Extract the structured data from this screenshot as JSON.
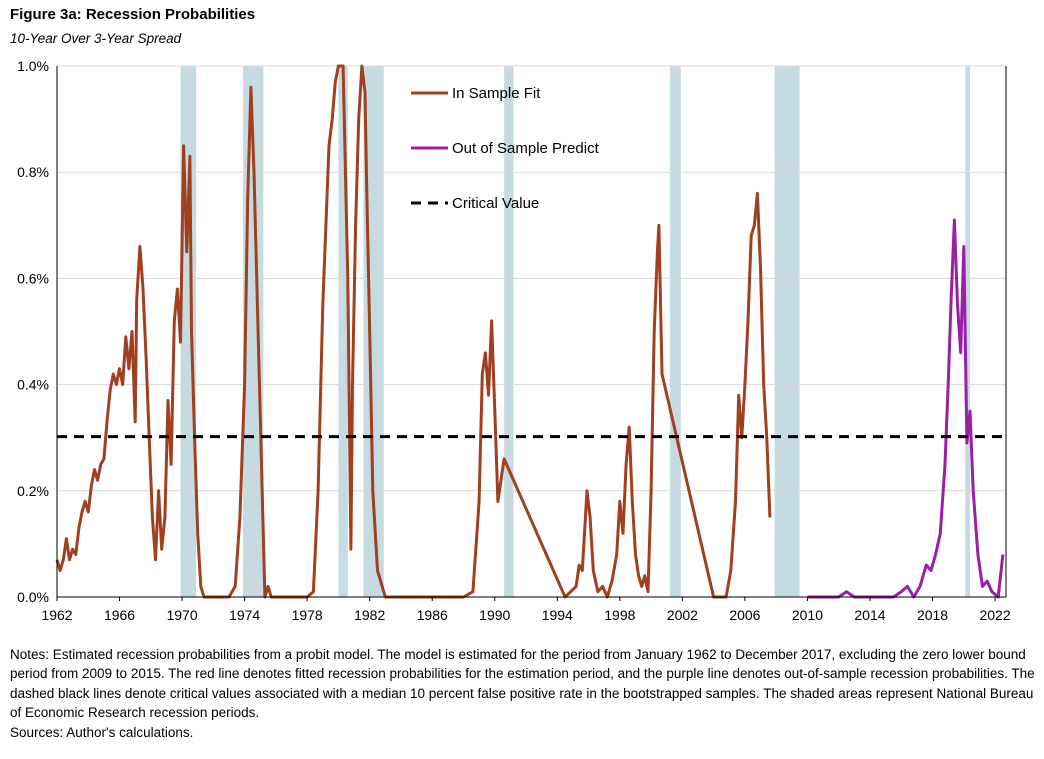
{
  "title": "Figure 3a: Recession Probabilities",
  "subtitle": "10-Year Over 3-Year Spread",
  "notes": "Notes: Estimated recession probabilities from a probit model. The model is estimated for the period from January 1962 to December 2017,  excluding the zero lower bound period from 2009 to 2015.  The red line denotes fitted recession probabilities for the estimation period, and the purple line denotes out-of-sample recession probabilities. The dashed black lines denote critical values associated with a median 10 percent false positive rate in the bootstrapped samples. The shaded areas represent National Bureau of Economic Research recession periods.",
  "sources": "Sources: Author's calculations.",
  "colors": {
    "in_sample": "#a0401e",
    "out_of_sample": "#9b1fa6",
    "critical": "#000000",
    "recession_shade": "#c5dbe1",
    "grid": "#d9d9d9"
  },
  "chart_data": {
    "type": "line",
    "xlim": [
      1962,
      2022.7
    ],
    "ylim": [
      0,
      1.0
    ],
    "grid": "horizontal",
    "legend_position": "top-center",
    "x_ticks": [
      "1962",
      "1966",
      "1970",
      "1974",
      "1978",
      "1982",
      "1986",
      "1990",
      "1994",
      "1998",
      "2002",
      "2006",
      "2010",
      "2014",
      "2018",
      "2022"
    ],
    "y_ticks": [
      "0.0%",
      "0.2%",
      "0.4%",
      "0.6%",
      "0.8%",
      "1.0%"
    ],
    "recessions": [
      [
        1969.9,
        1970.9
      ],
      [
        1973.9,
        1975.2
      ],
      [
        1980.0,
        1980.6
      ],
      [
        1981.6,
        1982.9
      ],
      [
        1990.6,
        1991.2
      ],
      [
        2001.2,
        2001.9
      ],
      [
        2007.9,
        2009.5
      ],
      [
        2020.1,
        2020.4
      ]
    ],
    "critical_value": 0.302,
    "series": [
      {
        "name": "In Sample Fit",
        "style": "solid",
        "points": [
          [
            1962.0,
            0.07
          ],
          [
            1962.2,
            0.05
          ],
          [
            1962.4,
            0.07
          ],
          [
            1962.6,
            0.11
          ],
          [
            1962.8,
            0.07
          ],
          [
            1963.0,
            0.09
          ],
          [
            1963.2,
            0.08
          ],
          [
            1963.4,
            0.13
          ],
          [
            1963.6,
            0.16
          ],
          [
            1963.8,
            0.18
          ],
          [
            1964.0,
            0.16
          ],
          [
            1964.2,
            0.21
          ],
          [
            1964.4,
            0.24
          ],
          [
            1964.6,
            0.22
          ],
          [
            1964.8,
            0.25
          ],
          [
            1965.0,
            0.26
          ],
          [
            1965.2,
            0.33
          ],
          [
            1965.4,
            0.39
          ],
          [
            1965.6,
            0.42
          ],
          [
            1965.8,
            0.4
          ],
          [
            1966.0,
            0.43
          ],
          [
            1966.2,
            0.4
          ],
          [
            1966.4,
            0.49
          ],
          [
            1966.6,
            0.43
          ],
          [
            1966.8,
            0.5
          ],
          [
            1967.0,
            0.33
          ],
          [
            1967.1,
            0.56
          ],
          [
            1967.3,
            0.66
          ],
          [
            1967.5,
            0.58
          ],
          [
            1967.7,
            0.45
          ],
          [
            1967.9,
            0.3
          ],
          [
            1968.1,
            0.15
          ],
          [
            1968.3,
            0.07
          ],
          [
            1968.5,
            0.2
          ],
          [
            1968.7,
            0.09
          ],
          [
            1968.9,
            0.15
          ],
          [
            1969.1,
            0.37
          ],
          [
            1969.3,
            0.25
          ],
          [
            1969.5,
            0.52
          ],
          [
            1969.7,
            0.58
          ],
          [
            1969.9,
            0.48
          ],
          [
            1970.1,
            0.85
          ],
          [
            1970.3,
            0.65
          ],
          [
            1970.5,
            0.83
          ],
          [
            1970.6,
            0.5
          ],
          [
            1970.8,
            0.3
          ],
          [
            1971.0,
            0.12
          ],
          [
            1971.2,
            0.02
          ],
          [
            1971.4,
            0.0
          ],
          [
            1972.0,
            0.0
          ],
          [
            1973.0,
            0.0
          ],
          [
            1973.4,
            0.02
          ],
          [
            1973.7,
            0.15
          ],
          [
            1974.0,
            0.4
          ],
          [
            1974.2,
            0.75
          ],
          [
            1974.4,
            0.96
          ],
          [
            1974.6,
            0.8
          ],
          [
            1975.3,
            0.0
          ],
          [
            1975.5,
            0.02
          ],
          [
            1975.7,
            0.0
          ],
          [
            1977.0,
            0.0
          ],
          [
            1978.0,
            0.0
          ],
          [
            1978.4,
            0.01
          ],
          [
            1978.7,
            0.2
          ],
          [
            1979.0,
            0.55
          ],
          [
            1979.2,
            0.7
          ],
          [
            1979.4,
            0.85
          ],
          [
            1979.6,
            0.9
          ],
          [
            1979.8,
            0.97
          ],
          [
            1980.0,
            1.0
          ],
          [
            1980.3,
            1.0
          ],
          [
            1980.6,
            0.6
          ],
          [
            1980.8,
            0.09
          ],
          [
            1980.9,
            0.4
          ],
          [
            1981.1,
            0.7
          ],
          [
            1981.3,
            0.9
          ],
          [
            1981.5,
            1.0
          ],
          [
            1981.7,
            0.95
          ],
          [
            1981.8,
            0.78
          ],
          [
            1982.0,
            0.5
          ],
          [
            1982.2,
            0.2
          ],
          [
            1982.5,
            0.05
          ],
          [
            1983.0,
            0.0
          ],
          [
            1988.0,
            0.0
          ],
          [
            1988.6,
            0.01
          ],
          [
            1989.0,
            0.18
          ],
          [
            1989.2,
            0.42
          ],
          [
            1989.4,
            0.46
          ],
          [
            1989.6,
            0.38
          ],
          [
            1989.8,
            0.52
          ],
          [
            1990.0,
            0.35
          ],
          [
            1990.2,
            0.18
          ],
          [
            1990.4,
            0.22
          ],
          [
            1990.6,
            0.26
          ],
          [
            1994.5,
            0.0
          ],
          [
            1995.2,
            0.02
          ],
          [
            1995.4,
            0.06
          ],
          [
            1995.6,
            0.05
          ],
          [
            1995.9,
            0.2
          ],
          [
            1996.1,
            0.15
          ],
          [
            1996.3,
            0.05
          ],
          [
            1996.6,
            0.01
          ],
          [
            1996.9,
            0.02
          ],
          [
            1997.2,
            0.0
          ],
          [
            1997.5,
            0.03
          ],
          [
            1997.8,
            0.08
          ],
          [
            1998.0,
            0.18
          ],
          [
            1998.2,
            0.12
          ],
          [
            1998.4,
            0.25
          ],
          [
            1998.6,
            0.32
          ],
          [
            1998.8,
            0.18
          ],
          [
            1999.0,
            0.08
          ],
          [
            1999.2,
            0.04
          ],
          [
            1999.4,
            0.02
          ],
          [
            1999.6,
            0.04
          ],
          [
            1999.8,
            0.01
          ],
          [
            2000.0,
            0.2
          ],
          [
            2000.2,
            0.5
          ],
          [
            2000.4,
            0.65
          ],
          [
            2000.5,
            0.7
          ],
          [
            2000.7,
            0.42
          ],
          [
            2004.0,
            0.0
          ],
          [
            2004.8,
            0.0
          ],
          [
            2005.1,
            0.05
          ],
          [
            2005.4,
            0.18
          ],
          [
            2005.6,
            0.38
          ],
          [
            2005.8,
            0.3
          ],
          [
            2006.0,
            0.4
          ],
          [
            2006.2,
            0.52
          ],
          [
            2006.4,
            0.68
          ],
          [
            2006.6,
            0.7
          ],
          [
            2006.8,
            0.76
          ],
          [
            2007.0,
            0.62
          ],
          [
            2007.2,
            0.4
          ],
          [
            2007.4,
            0.3
          ],
          [
            2007.6,
            0.15
          ]
        ]
      },
      {
        "name": "Out of Sample Predict",
        "style": "solid",
        "points": [
          [
            2010.0,
            0.0
          ],
          [
            2012.0,
            0.0
          ],
          [
            2012.5,
            0.01
          ],
          [
            2013.0,
            0.0
          ],
          [
            2015.5,
            0.0
          ],
          [
            2016.0,
            0.01
          ],
          [
            2016.4,
            0.02
          ],
          [
            2016.8,
            0.0
          ],
          [
            2017.2,
            0.02
          ],
          [
            2017.6,
            0.06
          ],
          [
            2017.9,
            0.05
          ],
          [
            2018.2,
            0.08
          ],
          [
            2018.5,
            0.12
          ],
          [
            2018.8,
            0.25
          ],
          [
            2019.0,
            0.4
          ],
          [
            2019.2,
            0.57
          ],
          [
            2019.4,
            0.71
          ],
          [
            2019.6,
            0.55
          ],
          [
            2019.8,
            0.46
          ],
          [
            2020.0,
            0.66
          ],
          [
            2020.2,
            0.29
          ],
          [
            2020.4,
            0.35
          ],
          [
            2020.6,
            0.2
          ],
          [
            2020.9,
            0.08
          ],
          [
            2021.2,
            0.02
          ],
          [
            2021.5,
            0.03
          ],
          [
            2021.8,
            0.01
          ],
          [
            2022.2,
            0.0
          ],
          [
            2022.5,
            0.08
          ]
        ]
      },
      {
        "name": "Critical Value",
        "style": "dashed",
        "points": [
          [
            1962.0,
            0.302
          ],
          [
            2022.7,
            0.302
          ]
        ]
      }
    ]
  }
}
